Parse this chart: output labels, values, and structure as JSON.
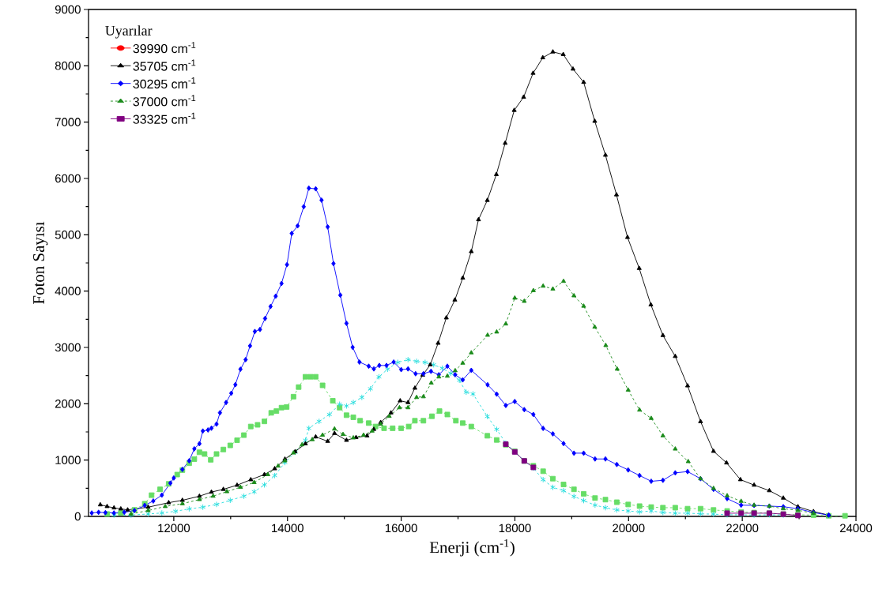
{
  "chart_data": {
    "type": "line",
    "xlabel": "Enerji (cm$^{-1}$)",
    "ylabel": "Foton Sayısı",
    "legend_title": "Uyarılar",
    "legend": "top left",
    "xlim": [
      10500,
      24000
    ],
    "xticks": [
      12000,
      14000,
      16000,
      18000,
      20000,
      22000,
      24000
    ],
    "ylim": [
      0,
      9000
    ],
    "yticks": [
      0,
      1000,
      2000,
      3000,
      4000,
      5000,
      6000,
      7000,
      8000,
      9000
    ],
    "series": [
      {
        "name": "39990 cm$^{-1}$",
        "color": "#ff0000",
        "marker": "circle",
        "line_style": "solid"
      },
      {
        "name": "35705 cm$^{-1}$",
        "color": "#000000",
        "marker": "triangle",
        "line_style": "solid",
        "x": [
          10707,
          10827,
          10948,
          11068,
          11188,
          11549,
          11910,
          12151,
          12451,
          12662,
          12872,
          13113,
          13354,
          13594,
          13775,
          13955,
          14135,
          14316,
          14496,
          14707,
          14827,
          15038,
          15206,
          15399,
          15519,
          15639,
          15820,
          15982,
          16120,
          16241,
          16379,
          16511,
          16650,
          16794,
          16944,
          17083,
          17233,
          17360,
          17515,
          17674,
          17829,
          17988,
          18154,
          18320,
          18491,
          18668,
          18851,
          19022,
          19210,
          19405,
          19593,
          19787,
          19981,
          20187,
          20392,
          20604,
          20821,
          21038,
          21266,
          21494,
          21723,
          21968,
          22208,
          22476,
          22722,
          22979,
          23253,
          23521
        ],
        "values": [
          207,
          177,
          152,
          134,
          116,
          164,
          244,
          286,
          359,
          432,
          481,
          554,
          652,
          743,
          847,
          1017,
          1151,
          1291,
          1413,
          1334,
          1474,
          1352,
          1401,
          1431,
          1547,
          1669,
          1839,
          2053,
          2022,
          2278,
          2509,
          2692,
          3076,
          3526,
          3843,
          4233,
          4702,
          5269,
          5612,
          6071,
          6626,
          7210,
          7445,
          7869,
          8144,
          8247,
          8201,
          7943,
          7708,
          7016,
          6414,
          5710,
          4954,
          4404,
          3757,
          3213,
          2841,
          2319,
          1684,
          1157,
          951,
          653,
          556,
          458,
          326,
          172,
          86,
          23
        ]
      },
      {
        "name": "30295 cm$^{-1}$",
        "color": "#0000ff",
        "marker": "diamond",
        "line_style": "solid",
        "x": [
          10557,
          10677,
          10797,
          10948,
          11128,
          11308,
          11489,
          11639,
          11790,
          11940,
          12000,
          12151,
          12271,
          12361,
          12451,
          12511,
          12602,
          12662,
          12752,
          12812,
          12920,
          13011,
          13083,
          13173,
          13263,
          13341,
          13426,
          13516,
          13606,
          13702,
          13793,
          13895,
          13991,
          14075,
          14178,
          14286,
          14376,
          14496,
          14599,
          14707,
          14809,
          14929,
          15038,
          15146,
          15266,
          15429,
          15519,
          15615,
          15742,
          15868,
          16000,
          16120,
          16253,
          16391,
          16524,
          16662,
          16812,
          16950,
          17083,
          17233,
          17520,
          17680,
          17840,
          17998,
          18165,
          18325,
          18497,
          18668,
          18856,
          19039,
          19210,
          19410,
          19593,
          19793,
          19993,
          20193,
          20398,
          20604,
          20821,
          21038,
          21266,
          21494,
          21734,
          21980,
          22208,
          22476,
          22722,
          22979,
          23253,
          23521
        ],
        "values": [
          61,
          73,
          67,
          61,
          73,
          104,
          195,
          274,
          378,
          591,
          682,
          835,
          987,
          1200,
          1291,
          1516,
          1535,
          1566,
          1639,
          1840,
          2022,
          2187,
          2339,
          2613,
          2783,
          3027,
          3283,
          3319,
          3514,
          3727,
          3910,
          4135,
          4470,
          5024,
          5158,
          5499,
          5828,
          5816,
          5615,
          5140,
          4488,
          3928,
          3428,
          3002,
          2740,
          2667,
          2619,
          2680,
          2680,
          2740,
          2606,
          2619,
          2533,
          2533,
          2576,
          2515,
          2667,
          2515,
          2424,
          2594,
          2337,
          2171,
          1970,
          2039,
          1896,
          1810,
          1563,
          1466,
          1294,
          1123,
          1123,
          1020,
          1020,
          922,
          825,
          727,
          624,
          641,
          773,
          796,
          670,
          481,
          315,
          200,
          195,
          183,
          172,
          137,
          69,
          23
        ]
      },
      {
        "name": "37000 cm$^{-1}$",
        "color": "#1a8a1a",
        "marker": "triangle",
        "line_style": "dashed",
        "x": [
          11248,
          11549,
          11850,
          12151,
          12451,
          12692,
          12933,
          13173,
          13414,
          13655,
          13835,
          13955,
          14106,
          14256,
          14436,
          14617,
          14827,
          14977,
          15158,
          15338,
          15489,
          15639,
          15790,
          15970,
          16120,
          16271,
          16391,
          16529,
          16662,
          16812,
          16950,
          17083,
          17233,
          17520,
          17680,
          17840,
          17998,
          18165,
          18325,
          18497,
          18668,
          18856,
          19039,
          19210,
          19405,
          19599,
          19799,
          19993,
          20193,
          20398,
          20604,
          20821,
          21049,
          21266,
          21494,
          21734,
          21980,
          22208,
          22476,
          22722,
          22979,
          23253
        ],
        "values": [
          43,
          104,
          177,
          226,
          300,
          360,
          440,
          518,
          603,
          743,
          895,
          987,
          1127,
          1273,
          1364,
          1443,
          1553,
          1456,
          1395,
          1443,
          1516,
          1638,
          1778,
          1931,
          1931,
          2113,
          2126,
          2369,
          2478,
          2491,
          2588,
          2722,
          2905,
          3218,
          3275,
          3418,
          3877,
          3820,
          4009,
          4089,
          4038,
          4175,
          3918,
          3734,
          3362,
          3035,
          2616,
          2244,
          1889,
          1741,
          1432,
          1197,
          974,
          670,
          498,
          367,
          269,
          200,
          183,
          137,
          109,
          57
        ]
      },
      {
        "name": "33325 cm$^{-1}$",
        "color": "#800080",
        "marker": "square",
        "line_style": "solid",
        "x": [
          17840,
          17998,
          18165,
          18325,
          20000,
          21734,
          21980,
          22208,
          22476,
          22722,
          22979
        ],
        "values": [
          1283,
          1145,
          985,
          870,
          null,
          57,
          57,
          57,
          57,
          40,
          17
        ]
      },
      {
        "color": "#66dd66",
        "marker": "square",
        "line_style": "dashed",
        "x": [
          10827,
          11068,
          11308,
          11489,
          11609,
          11759,
          11910,
          12060,
          12151,
          12271,
          12361,
          12451,
          12541,
          12650,
          12752,
          12872,
          12993,
          13113,
          13233,
          13354,
          13474,
          13594,
          13714,
          13805,
          13895,
          13985,
          14106,
          14196,
          14316,
          14406,
          14496,
          14617,
          14797,
          14917,
          15038,
          15158,
          15278,
          15429,
          15549,
          15699,
          15850,
          16000,
          16132,
          16241,
          16391,
          16541,
          16674,
          16812,
          16962,
          17083,
          17233,
          17515,
          17680,
          17840,
          17998,
          18165,
          18325,
          18497,
          18668,
          18856,
          19039,
          19210,
          19410,
          19593,
          19793,
          19993,
          20193,
          20398,
          20604,
          20821,
          21038,
          21266,
          21494,
          21734,
          21980,
          22208,
          22476,
          22722,
          22979,
          23253,
          23521,
          23807
        ],
        "values": [
          43,
          61,
          116,
          225,
          377,
          481,
          578,
          743,
          822,
          944,
          1017,
          1139,
          1108,
          1005,
          1108,
          1188,
          1261,
          1352,
          1443,
          1596,
          1626,
          1687,
          1839,
          1870,
          1931,
          1943,
          2126,
          2296,
          2479,
          2479,
          2479,
          2327,
          2053,
          1931,
          1797,
          1760,
          1699,
          1657,
          1596,
          1565,
          1565,
          1565,
          1596,
          1699,
          1699,
          1778,
          1870,
          1809,
          1699,
          1657,
          1596,
          1432,
          1357,
          1271,
          1157,
          985,
          899,
          802,
          670,
          567,
          481,
          401,
          326,
          298,
          252,
          212,
          183,
          166,
          155,
          155,
          137,
          137,
          115,
          97,
          80,
          69,
          57,
          40,
          29,
          23,
          11,
          11
        ]
      },
      {
        "color": "#22dddd",
        "marker": "cross",
        "line_style": "dashed",
        "x": [
          10948,
          11248,
          11549,
          11790,
          12030,
          12271,
          12511,
          12752,
          12993,
          13233,
          13414,
          13594,
          13775,
          13955,
          14135,
          14316,
          14376,
          14556,
          14737,
          14917,
          15038,
          15158,
          15308,
          15459,
          15609,
          15760,
          15940,
          16120,
          16271,
          16421,
          16572,
          16722,
          16872,
          17023,
          17143,
          17263,
          17515,
          17680,
          17840,
          17998,
          18165,
          18325,
          18497,
          18668,
          18856,
          19039,
          19210,
          19410,
          19593,
          19793,
          19993,
          20193,
          20398,
          20604,
          20821,
          21038,
          21266,
          21494,
          21734,
          21980,
          22208,
          22476,
          22722
        ],
        "values": [
          24,
          24,
          43,
          61,
          91,
          134,
          164,
          213,
          286,
          359,
          438,
          560,
          725,
          956,
          1139,
          1352,
          1565,
          1687,
          1809,
          1992,
          1961,
          2022,
          2113,
          2266,
          2479,
          2613,
          2735,
          2783,
          2753,
          2735,
          2692,
          2631,
          2540,
          2418,
          2205,
          2174,
          1775,
          1546,
          1300,
          1145,
          985,
          859,
          653,
          516,
          458,
          355,
          281,
          200,
          155,
          115,
          97,
          80,
          97,
          69,
          57,
          57,
          46,
          40,
          29,
          29,
          23,
          29,
          23
        ]
      }
    ]
  }
}
